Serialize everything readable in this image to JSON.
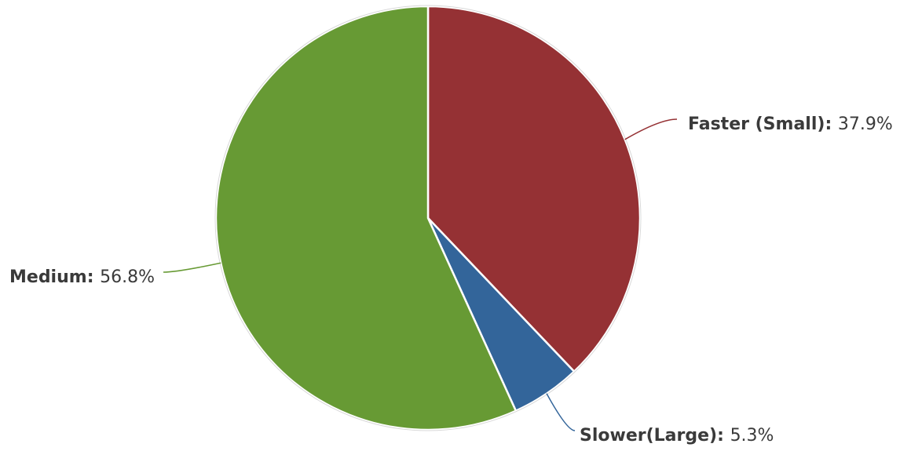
{
  "chart_data": {
    "type": "pie",
    "slices": [
      {
        "label": "Faster (Small)",
        "value": 37.9,
        "value_text": "37.9%",
        "color": "#953134"
      },
      {
        "label": "Slower(Large)",
        "value": 5.3,
        "value_text": "5.3%",
        "color": "#33659A"
      },
      {
        "label": "Medium",
        "value": 56.8,
        "value_text": "56.8%",
        "color": "#679A34"
      }
    ],
    "start_angle_deg": 0,
    "direction": "clockwise",
    "legend": "none",
    "labels": "outside-with-leader-lines"
  }
}
